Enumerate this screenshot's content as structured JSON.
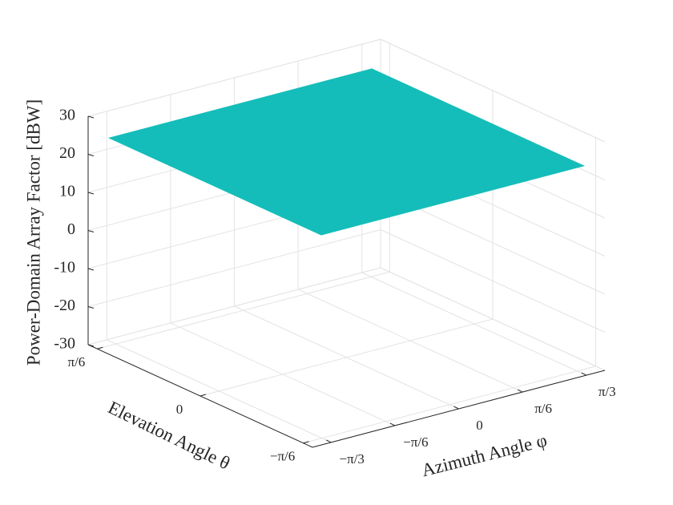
{
  "chart_data": {
    "type": "surface",
    "zlabel": "Power-Domain Array Factor [dBW]",
    "xlabel": "Azimuth Angle φ",
    "ylabel": "Elevation Angle θ",
    "xlim": [
      -1.2,
      1.2
    ],
    "ylim": [
      -0.57,
      0.57
    ],
    "zlim": [
      -30,
      30
    ],
    "xticks": [
      {
        "value": -1.0472,
        "label": "−π/3"
      },
      {
        "value": -0.5236,
        "label": "−π/6"
      },
      0,
      {
        "value": 0.5236,
        "label": "π/6"
      },
      {
        "value": 1.0472,
        "label": "π/3"
      }
    ],
    "yticks": [
      {
        "value": -0.5236,
        "label": "−π/6"
      },
      0,
      {
        "value": 0.5236,
        "label": "π/6"
      }
    ],
    "zticks": [
      -30,
      -20,
      -10,
      0,
      10,
      20,
      30
    ],
    "grid": true,
    "color": "#14bdb9",
    "x": [
      -1.08,
      1.08
    ],
    "y": [
      -0.54,
      0.54
    ],
    "z": [
      [
        24,
        24
      ],
      [
        24,
        24
      ]
    ]
  }
}
